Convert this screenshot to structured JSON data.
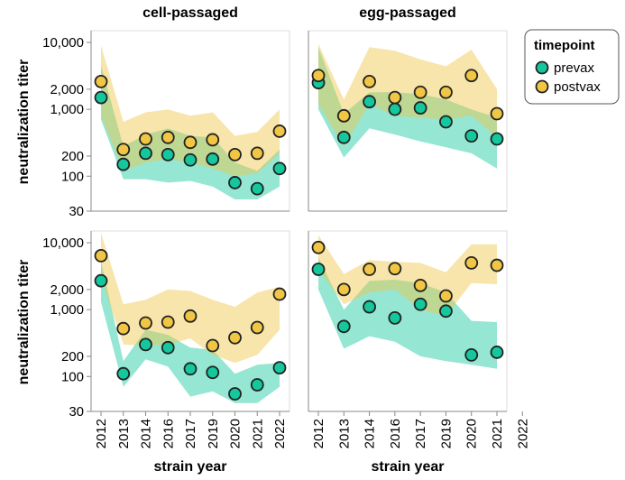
{
  "chart_data": {
    "type": "scatter",
    "facet_columns": [
      "cell-passaged",
      "egg-passaged"
    ],
    "xlabel": "strain year",
    "ylabel": "neutralization titer",
    "yscale": "log",
    "ylim": [
      30,
      15000
    ],
    "yticks": [
      30,
      100,
      200,
      1000,
      2000,
      10000
    ],
    "ytick_labels": [
      "30",
      "100",
      "200",
      "1,000",
      "2,000",
      "10,000"
    ],
    "categories": [
      "2012",
      "2013",
      "2014",
      "2016",
      "2017",
      "2019",
      "2020",
      "2021",
      "2022"
    ],
    "legend": {
      "title": "timepoint",
      "position": "top-right",
      "items": [
        {
          "label": "prevax",
          "color": "#14c79d"
        },
        {
          "label": "postvax",
          "color": "#f0c644"
        }
      ]
    },
    "panels": [
      {
        "row": 0,
        "column": "cell-passaged",
        "categories": [
          "2012",
          "2013",
          "2014",
          "2016",
          "2017",
          "2019",
          "2020",
          "2021",
          "2022"
        ],
        "series": [
          {
            "name": "prevax",
            "values": [
              1500,
              150,
              220,
              210,
              175,
              180,
              80,
              65,
              130
            ],
            "lower": [
              700,
              90,
              90,
              80,
              85,
              70,
              45,
              45,
              70
            ],
            "upper": [
              4500,
              280,
              420,
              520,
              400,
              380,
              160,
              120,
              250
            ]
          },
          {
            "name": "postvax",
            "values": [
              2600,
              250,
              360,
              380,
              320,
              350,
              210,
              220,
              470
            ],
            "lower": [
              800,
              120,
              160,
              180,
              160,
              130,
              100,
              110,
              220
            ],
            "upper": [
              9000,
              650,
              900,
              1000,
              800,
              900,
              400,
              460,
              1000
            ]
          }
        ]
      },
      {
        "row": 0,
        "column": "egg-passaged",
        "categories": [
          "2012",
          "2013",
          "2014",
          "2016",
          "2019",
          "2020",
          "2021",
          "2022"
        ],
        "series": [
          {
            "name": "prevax",
            "values": [
              2500,
              380,
              1300,
              1000,
              1050,
              650,
              400,
              360
            ],
            "lower": [
              1000,
              190,
              520,
              420,
              330,
              270,
              220,
              130
            ],
            "upper": [
              8500,
              850,
              1800,
              1800,
              1700,
              1400,
              1000,
              750
            ]
          },
          {
            "name": "postvax",
            "values": [
              3200,
              800,
              2600,
              1500,
              1800,
              1800,
              3200,
              860
            ],
            "lower": [
              1200,
              280,
              1200,
              800,
              750,
              700,
              800,
              380
            ],
            "upper": [
              9500,
              1400,
              8500,
              7500,
              5600,
              4400,
              7800,
              2000
            ]
          }
        ]
      },
      {
        "row": 1,
        "column": "cell-passaged",
        "categories": [
          "2012",
          "2013",
          "2014",
          "2016",
          "2017",
          "2019",
          "2020",
          "2021",
          "2022"
        ],
        "series": [
          {
            "name": "prevax",
            "values": [
              2700,
              110,
              300,
              270,
              130,
              115,
              55,
              75,
              135
            ],
            "lower": [
              1300,
              70,
              180,
              140,
              50,
              60,
              40,
              40,
              70
            ],
            "upper": [
              5300,
              170,
              500,
              420,
              270,
              250,
              110,
              150,
              160
            ]
          },
          {
            "name": "postvax",
            "values": [
              6400,
              520,
              630,
              650,
              800,
              290,
              380,
              540,
              1700
            ],
            "lower": [
              3000,
              300,
              290,
              300,
              370,
              210,
              160,
              210,
              500
            ],
            "upper": [
              14000,
              1200,
              1400,
              2000,
              1900,
              1400,
              1100,
              1800,
              2200
            ]
          }
        ]
      },
      {
        "row": 1,
        "column": "egg-passaged",
        "categories": [
          "2012",
          "2013",
          "2014",
          "2016",
          "2019",
          "2020",
          "2021",
          "2022"
        ],
        "series": [
          {
            "name": "prevax",
            "values": [
              4000,
              560,
              1100,
              750,
              1200,
              950,
              210,
              230
            ],
            "lower": [
              2000,
              260,
              400,
              330,
              200,
              170,
              150,
              130
            ],
            "upper": [
              6000,
              1000,
              2700,
              2800,
              2500,
              1800,
              680,
              650
            ]
          },
          {
            "name": "postvax",
            "values": [
              8500,
              2000,
              4000,
              4100,
              2300,
              1600,
              5000,
              4600
            ],
            "lower": [
              4000,
              1200,
              1800,
              2000,
              1000,
              800,
              2500,
              2400
            ],
            "upper": [
              13000,
              3400,
              5500,
              5200,
              5000,
              3600,
              9500,
              9500
            ]
          }
        ]
      }
    ]
  }
}
